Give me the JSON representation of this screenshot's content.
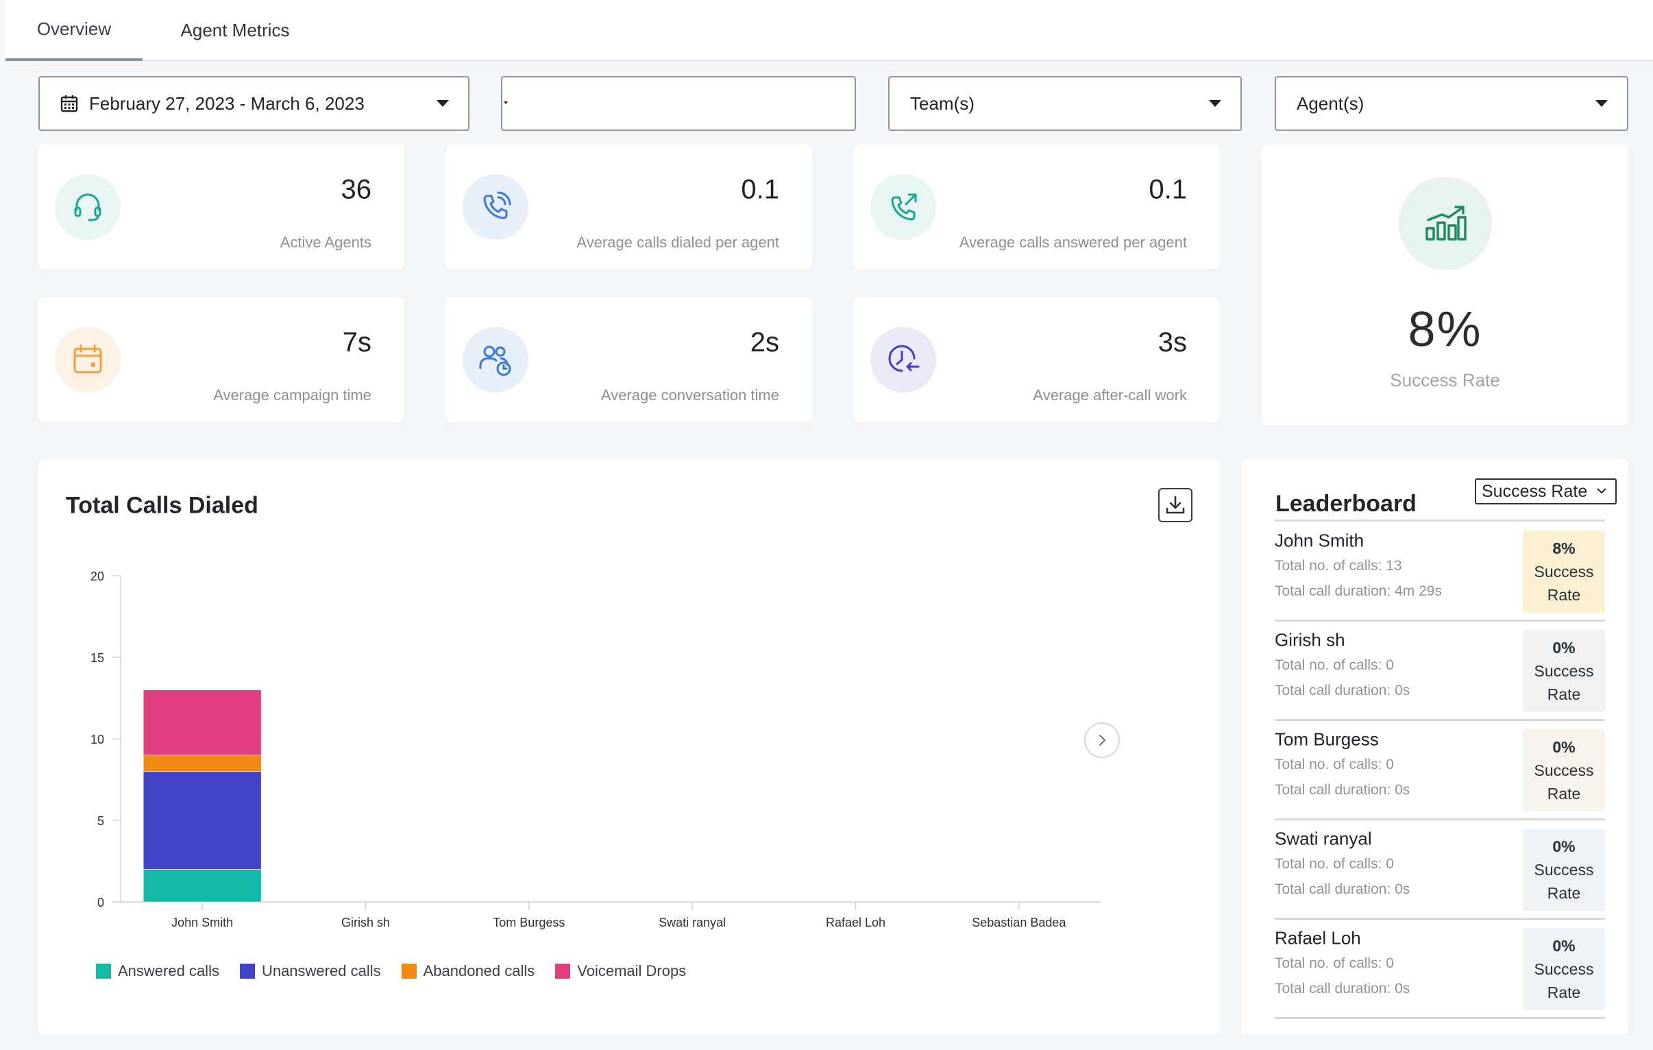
{
  "tabs": [
    {
      "label": "Overview",
      "active": true
    },
    {
      "label": "Agent Metrics",
      "active": false
    }
  ],
  "filters": {
    "date_range": "February 27, 2023 - March 6, 2023",
    "blank_value": "",
    "teams_placeholder": "Team(s)",
    "agents_placeholder": "Agent(s)"
  },
  "stats": [
    {
      "value": "36",
      "label": "Active Agents",
      "icon": "headset-icon"
    },
    {
      "value": "0.1",
      "label": "Average calls dialed per agent",
      "icon": "phone-dial-icon"
    },
    {
      "value": "0.1",
      "label": "Average calls answered per agent",
      "icon": "phone-outgoing-icon"
    },
    {
      "value": "7s",
      "label": "Average campaign time",
      "icon": "calendar-icon"
    },
    {
      "value": "2s",
      "label": "Average conversation time",
      "icon": "users-clock-icon"
    },
    {
      "value": "3s",
      "label": "Average after-call work",
      "icon": "clock-return-icon"
    }
  ],
  "success": {
    "value": "8%",
    "label": "Success Rate",
    "icon": "bar-chart-up-icon"
  },
  "chart_data": {
    "type": "bar",
    "stacked": true,
    "title": "Total Calls Dialed",
    "categories": [
      "John Smith",
      "Girish sh",
      "Tom Burgess",
      "Swati ranyal",
      "Rafael Loh",
      "Sebastian Badea"
    ],
    "series": [
      {
        "name": "Answered calls",
        "color": "#14b8a6",
        "values": [
          2,
          0,
          0,
          0,
          0,
          0
        ]
      },
      {
        "name": "Unanswered calls",
        "color": "#4343c8",
        "values": [
          6,
          0,
          0,
          0,
          0,
          0
        ]
      },
      {
        "name": "Abandoned calls",
        "color": "#f08a12",
        "values": [
          1,
          0,
          0,
          0,
          0,
          0
        ]
      },
      {
        "name": "Voicemail Drops",
        "color": "#e23f82",
        "values": [
          4,
          0,
          0,
          0,
          0,
          0
        ]
      }
    ],
    "ylim": [
      0,
      20
    ],
    "yticks": [
      0,
      5,
      10,
      15,
      20
    ],
    "legend_position": "bottom-left",
    "grid": false
  },
  "leaderboard": {
    "title": "Leaderboard",
    "sort_label": "Success Rate",
    "rows": [
      {
        "name": "John Smith",
        "calls": "Total no. of calls: 13",
        "duration": "Total call duration: 4m 29s",
        "pct": "8%",
        "line1": "Success",
        "line2": "Rate",
        "badge_color": "#fbf1d2"
      },
      {
        "name": "Girish sh",
        "calls": "Total no. of calls: 0",
        "duration": "Total call duration: 0s",
        "pct": "0%",
        "line1": "Success",
        "line2": "Rate",
        "badge_color": "#f0f1f3"
      },
      {
        "name": "Tom Burgess",
        "calls": "Total no. of calls: 0",
        "duration": "Total call duration: 0s",
        "pct": "0%",
        "line1": "Success",
        "line2": "Rate",
        "badge_color": "#f7f3ec"
      },
      {
        "name": "Swati ranyal",
        "calls": "Total no. of calls: 0",
        "duration": "Total call duration: 0s",
        "pct": "0%",
        "line1": "Success",
        "line2": "Rate",
        "badge_color": "#eef3f8"
      },
      {
        "name": "Rafael Loh",
        "calls": "Total no. of calls: 0",
        "duration": "Total call duration: 0s",
        "pct": "0%",
        "line1": "Success",
        "line2": "Rate",
        "badge_color": "#eef3f8"
      }
    ]
  }
}
